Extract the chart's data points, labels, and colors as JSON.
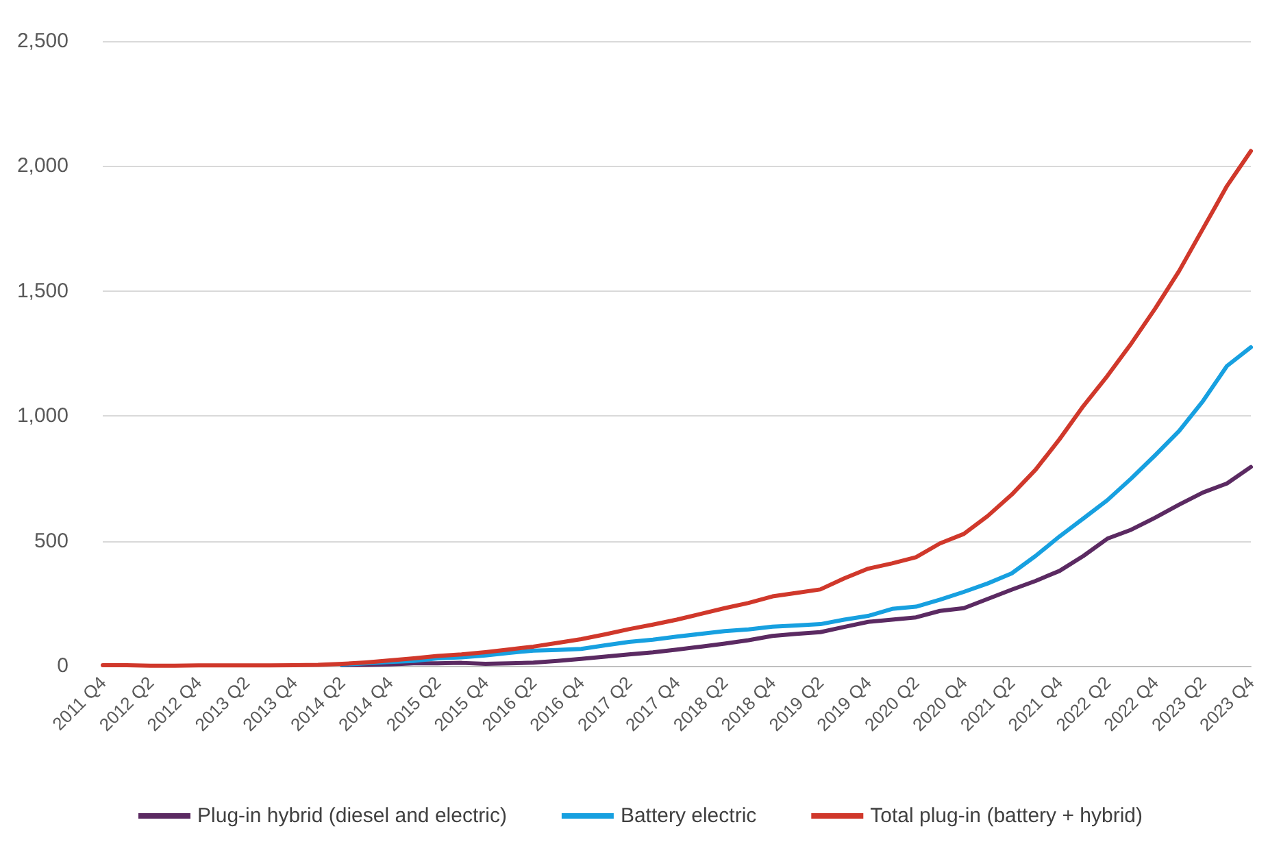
{
  "chart_data": {
    "type": "line",
    "categories": [
      "2011 Q4",
      null,
      "2012 Q2",
      null,
      "2012 Q4",
      null,
      "2013 Q2",
      null,
      "2013 Q4",
      null,
      "2014 Q2",
      null,
      "2014 Q4",
      null,
      "2015 Q2",
      null,
      "2015 Q4",
      null,
      "2016 Q2",
      null,
      "2016 Q4",
      null,
      "2017 Q2",
      null,
      "2017 Q4",
      null,
      "2018 Q2",
      null,
      "2018 Q4",
      null,
      "2019 Q2",
      null,
      "2019 Q4",
      null,
      "2020 Q2",
      null,
      "2020 Q4",
      null,
      "2021 Q2",
      null,
      "2021 Q4",
      null,
      "2022 Q2",
      null,
      "2022 Q4",
      null,
      "2023 Q2",
      null,
      "2023 Q4"
    ],
    "series": [
      {
        "name": "Plug-in hybrid (diesel and electric)",
        "color": "#5b2a62",
        "values": [
          null,
          null,
          null,
          null,
          null,
          null,
          null,
          null,
          null,
          null,
          3,
          4,
          6,
          10,
          10,
          12,
          8,
          10,
          13,
          20,
          28,
          37,
          46,
          54,
          65,
          77,
          89,
          103,
          120,
          128,
          135,
          156,
          176,
          185,
          194,
          220,
          231,
          268,
          305,
          340,
          380,
          440,
          509,
          545,
          593,
          645,
          694,
          730,
          796
        ]
      },
      {
        "name": "Battery electric",
        "color": "#17a0e0",
        "values": [
          null,
          null,
          null,
          null,
          null,
          null,
          null,
          null,
          null,
          null,
          5,
          10,
          16,
          20,
          30,
          34,
          42,
          52,
          61,
          64,
          68,
          82,
          96,
          105,
          117,
          128,
          139,
          146,
          157,
          162,
          167,
          185,
          200,
          228,
          237,
          265,
          296,
          330,
          370,
          440,
          518,
          590,
          663,
          750,
          843,
          940,
          1060,
          1200,
          1275
        ]
      },
      {
        "name": "Total plug-in (battery + hybrid)",
        "color": "#d0382b",
        "values": [
          3,
          3,
          1,
          1,
          2,
          2,
          2,
          2,
          3,
          4,
          8,
          14,
          22,
          30,
          40,
          46,
          55,
          66,
          77,
          92,
          107,
          126,
          147,
          165,
          185,
          208,
          231,
          252,
          278,
          292,
          306,
          350,
          389,
          410,
          435,
          490,
          528,
          600,
          685,
          785,
          907,
          1040,
          1160,
          1290,
          1430,
          1580,
          1750,
          1920,
          2060
        ]
      }
    ],
    "ylim": [
      0,
      2500
    ],
    "yticks": [
      0,
      {
        "value": 500,
        "label": "500"
      },
      {
        "value": 1000,
        "label": "1,000"
      },
      {
        "value": 1500,
        "label": "1,500"
      },
      {
        "value": 2000,
        "label": "2,000"
      },
      {
        "value": 2500,
        "label": "2,500"
      }
    ],
    "grid": "y",
    "legend": "bottom",
    "marker": "none",
    "line_style": "solid"
  }
}
